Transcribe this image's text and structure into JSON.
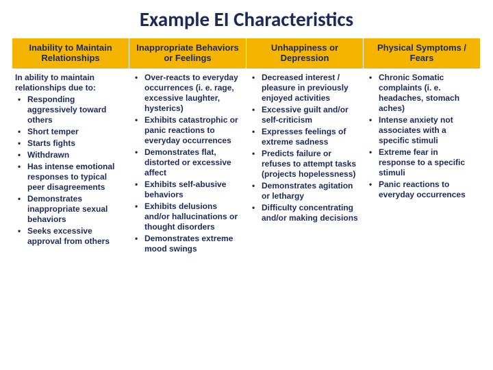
{
  "title": "Example EI Characteristics",
  "columns": [
    {
      "header": "Inability to Maintain Relationships",
      "intro": "In ability to maintain relationships due to:",
      "bullets": [
        "Responding aggressively toward others",
        "Short temper",
        "Starts fights",
        "Withdrawn",
        "Has intense emotional responses to typical peer disagreements",
        "Demonstrates inappropriate sexual behaviors",
        "Seeks excessive approval from others"
      ]
    },
    {
      "header": "Inappropriate Behaviors or Feelings",
      "intro": "",
      "bullets": [
        "Over-reacts to everyday occurrences (i. e. rage, excessive laughter, hysterics)",
        "Exhibits catastrophic or panic reactions to everyday occurrences",
        "Demonstrates flat, distorted or excessive affect",
        "Exhibits self-abusive behaviors",
        "Exhibits delusions and/or hallucinations or thought disorders",
        "Demonstrates extreme mood swings"
      ]
    },
    {
      "header": "Unhappiness or Depression",
      "intro": "",
      "bullets": [
        "Decreased interest / pleasure in previously enjoyed activities",
        "Excessive guilt and/or self-criticism",
        "Expresses feelings of extreme sadness",
        "Predicts failure or refuses to attempt tasks (projects hopelessness)",
        "Demonstrates agitation or lethargy",
        "Difficulty concentrating and/or making decisions"
      ]
    },
    {
      "header": "Physical Symptoms / Fears",
      "intro": "",
      "bullets": [
        "Chronic Somatic complaints (i. e. headaches, stomach aches)",
        "Intense anxiety not associates with a specific stimuli",
        "Extreme fear in response to a specific stimuli",
        "Panic reactions to everyday occurrences"
      ]
    }
  ],
  "colors": {
    "header_bg": "#f4b400",
    "text": "#1a2a5a",
    "background": "#ffffff"
  }
}
